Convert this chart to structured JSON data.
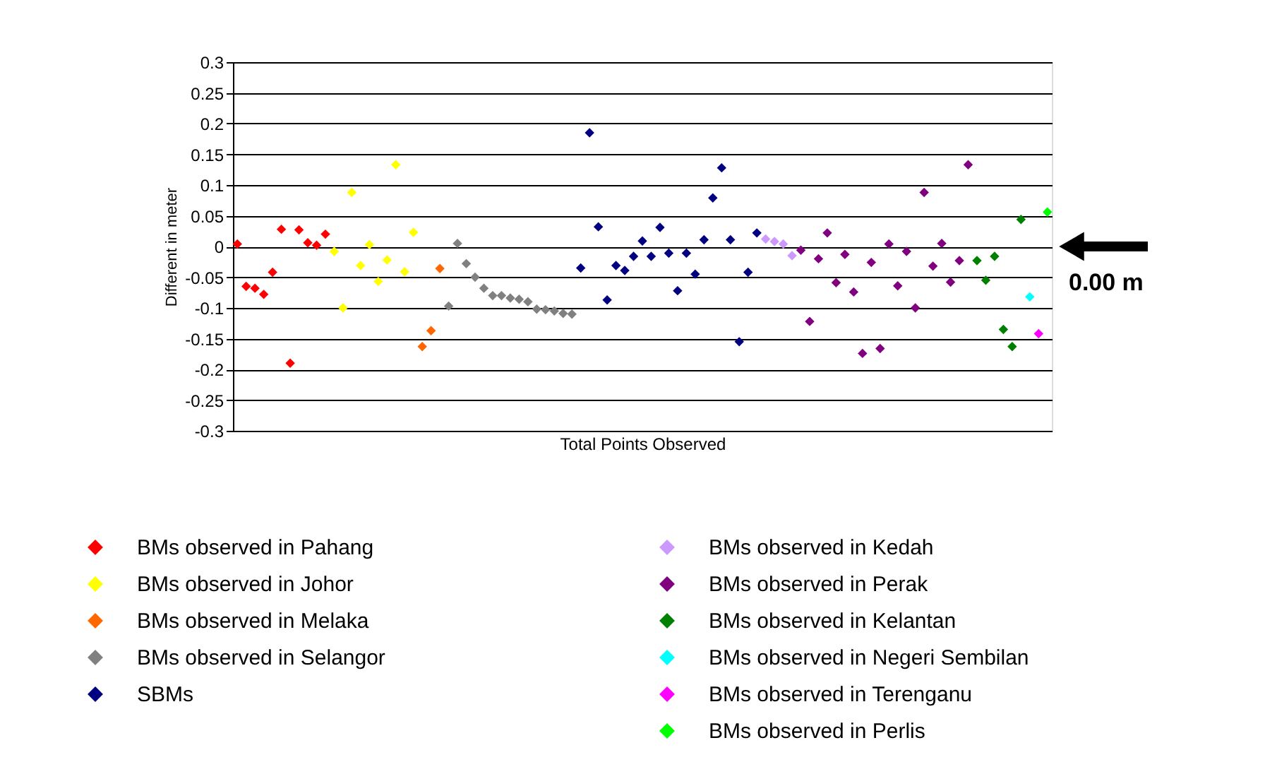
{
  "chart_data": {
    "type": "scatter",
    "xlabel": "Total Points Observed",
    "ylabel": "Different in meter",
    "categories": [
      null,
      null,
      null,
      null,
      null,
      null,
      null,
      null,
      null,
      null,
      null,
      null,
      null,
      null,
      null,
      null,
      null,
      null,
      null,
      null,
      null,
      null,
      null,
      null,
      null,
      null,
      null,
      null,
      null,
      null,
      null,
      null,
      null,
      null,
      null,
      null,
      null,
      null,
      null,
      null,
      null,
      null,
      null,
      null,
      null,
      null,
      null,
      null,
      null,
      null,
      null,
      null,
      null,
      null,
      null,
      null,
      null,
      null,
      null,
      null,
      null,
      null,
      null,
      null,
      null,
      null,
      null,
      null,
      null,
      null,
      null,
      null,
      null,
      null,
      null,
      null,
      null,
      null,
      null,
      null,
      null,
      null,
      null,
      null,
      null,
      null,
      null,
      null,
      null,
      null,
      null,
      null,
      null
    ],
    "series": [
      {
        "name": "BMs observed in Pahang",
        "color": "#ff0000",
        "values": [
          0.004,
          -0.065,
          -0.068,
          -0.078,
          -0.042,
          0.028,
          -0.19,
          0.027,
          0.006,
          0.002,
          0.02,
          null,
          null,
          null,
          null,
          null,
          null,
          null,
          null,
          null,
          null,
          null,
          null,
          null,
          null,
          null,
          null,
          null,
          null,
          null,
          null,
          null,
          null,
          null,
          null,
          null,
          null,
          null,
          null,
          null,
          null,
          null,
          null,
          null,
          null,
          null,
          null,
          null,
          null,
          null,
          null,
          null,
          null,
          null,
          null,
          null,
          null,
          null,
          null,
          null,
          null,
          null,
          null,
          null,
          null,
          null,
          null,
          null,
          null,
          null,
          null,
          null,
          null,
          null,
          null,
          null,
          null,
          null,
          null,
          null,
          null,
          null,
          null,
          null,
          null,
          null,
          null,
          null,
          null,
          null,
          null,
          null,
          null
        ]
      },
      {
        "name": "BMs observed in Johor",
        "color": "#ffff00",
        "values": [
          null,
          null,
          null,
          null,
          null,
          null,
          null,
          null,
          null,
          null,
          null,
          -0.008,
          -0.1,
          0.088,
          -0.031,
          0.003,
          -0.057,
          -0.022,
          0.133,
          -0.041,
          0.023,
          null,
          null,
          null,
          null,
          null,
          null,
          null,
          null,
          null,
          null,
          null,
          null,
          null,
          null,
          null,
          null,
          null,
          null,
          null,
          null,
          null,
          null,
          null,
          null,
          null,
          null,
          null,
          null,
          null,
          null,
          null,
          null,
          null,
          null,
          null,
          null,
          null,
          null,
          null,
          null,
          null,
          null,
          null,
          null,
          null,
          null,
          null,
          null,
          null,
          null,
          null,
          null,
          null,
          null,
          null,
          null,
          null,
          null,
          null,
          null,
          null,
          null,
          null,
          null,
          null,
          null,
          null,
          null,
          null,
          null,
          null,
          null
        ]
      },
      {
        "name": "BMs observed in Melaka",
        "color": "#ff6600",
        "values": [
          null,
          null,
          null,
          null,
          null,
          null,
          null,
          null,
          null,
          null,
          null,
          null,
          null,
          null,
          null,
          null,
          null,
          null,
          null,
          null,
          null,
          -0.163,
          -0.137,
          -0.036,
          null,
          null,
          null,
          null,
          null,
          null,
          null,
          null,
          null,
          null,
          null,
          null,
          null,
          null,
          null,
          null,
          null,
          null,
          null,
          null,
          null,
          null,
          null,
          null,
          null,
          null,
          null,
          null,
          null,
          null,
          null,
          null,
          null,
          null,
          null,
          null,
          null,
          null,
          null,
          null,
          null,
          null,
          null,
          null,
          null,
          null,
          null,
          null,
          null,
          null,
          null,
          null,
          null,
          null,
          null,
          null,
          null,
          null,
          null,
          null,
          null,
          null,
          null,
          null,
          null,
          null,
          null,
          null,
          null
        ]
      },
      {
        "name": "BMs observed in Selangor",
        "color": "#808080",
        "values": [
          null,
          null,
          null,
          null,
          null,
          null,
          null,
          null,
          null,
          null,
          null,
          null,
          null,
          null,
          null,
          null,
          null,
          null,
          null,
          null,
          null,
          null,
          null,
          null,
          -0.097,
          0.005,
          -0.028,
          -0.05,
          -0.068,
          -0.08,
          -0.08,
          -0.084,
          -0.086,
          -0.09,
          -0.102,
          -0.103,
          -0.105,
          -0.109,
          -0.11,
          null,
          null,
          null,
          null,
          null,
          null,
          null,
          null,
          null,
          null,
          null,
          null,
          null,
          null,
          null,
          null,
          null,
          null,
          null,
          null,
          null,
          null,
          null,
          null,
          null,
          null,
          null,
          null,
          null,
          null,
          null,
          null,
          null,
          null,
          null,
          null,
          null,
          null,
          null,
          null,
          null,
          null,
          null,
          null,
          null,
          null,
          null,
          null,
          null,
          null,
          null,
          null,
          null,
          null
        ]
      },
      {
        "name": "SBMs",
        "color": "#000080",
        "values": [
          null,
          null,
          null,
          null,
          null,
          null,
          null,
          null,
          null,
          null,
          null,
          null,
          null,
          null,
          null,
          null,
          null,
          null,
          null,
          null,
          null,
          null,
          null,
          null,
          null,
          null,
          null,
          null,
          null,
          null,
          null,
          null,
          null,
          null,
          null,
          null,
          null,
          null,
          null,
          -0.035,
          0.185,
          0.032,
          -0.087,
          -0.031,
          -0.039,
          -0.016,
          0.009,
          -0.016,
          0.031,
          -0.011,
          -0.072,
          -0.011,
          -0.045,
          0.011,
          0.079,
          0.128,
          0.011,
          -0.155,
          -0.042,
          0.022,
          null,
          null,
          null,
          null,
          null,
          null,
          null,
          null,
          null,
          null,
          null,
          null,
          null,
          null,
          null,
          null,
          null,
          null,
          null,
          null,
          null,
          null,
          null,
          null,
          null,
          null,
          null,
          null,
          null,
          null,
          null,
          null,
          null
        ]
      },
      {
        "name": "BMs observed in Kedah",
        "color": "#cc99ff",
        "values": [
          null,
          null,
          null,
          null,
          null,
          null,
          null,
          null,
          null,
          null,
          null,
          null,
          null,
          null,
          null,
          null,
          null,
          null,
          null,
          null,
          null,
          null,
          null,
          null,
          null,
          null,
          null,
          null,
          null,
          null,
          null,
          null,
          null,
          null,
          null,
          null,
          null,
          null,
          null,
          null,
          null,
          null,
          null,
          null,
          null,
          null,
          null,
          null,
          null,
          null,
          null,
          null,
          null,
          null,
          null,
          null,
          null,
          null,
          null,
          null,
          0.012,
          0.008,
          0.004,
          -0.015,
          null,
          null,
          null,
          null,
          null,
          null,
          null,
          null,
          null,
          null,
          null,
          null,
          null,
          null,
          null,
          null,
          null,
          null,
          null,
          null,
          null,
          null,
          null,
          null,
          null,
          null,
          null,
          null,
          null
        ]
      },
      {
        "name": "BMs observed in Perak",
        "color": "#800080",
        "values": [
          null,
          null,
          null,
          null,
          null,
          null,
          null,
          null,
          null,
          null,
          null,
          null,
          null,
          null,
          null,
          null,
          null,
          null,
          null,
          null,
          null,
          null,
          null,
          null,
          null,
          null,
          null,
          null,
          null,
          null,
          null,
          null,
          null,
          null,
          null,
          null,
          null,
          null,
          null,
          null,
          null,
          null,
          null,
          null,
          null,
          null,
          null,
          null,
          null,
          null,
          null,
          null,
          null,
          null,
          null,
          null,
          null,
          null,
          null,
          null,
          null,
          null,
          null,
          null,
          -0.006,
          -0.122,
          -0.02,
          0.022,
          -0.059,
          -0.013,
          -0.074,
          -0.174,
          -0.026,
          -0.166,
          0.004,
          -0.064,
          -0.008,
          -0.1,
          0.088,
          -0.032,
          0.005,
          -0.058,
          -0.023,
          0.133,
          null,
          null,
          null,
          null,
          null,
          null,
          null,
          null,
          null
        ]
      },
      {
        "name": "BMs observed in Kelantan",
        "color": "#008000",
        "values": [
          null,
          null,
          null,
          null,
          null,
          null,
          null,
          null,
          null,
          null,
          null,
          null,
          null,
          null,
          null,
          null,
          null,
          null,
          null,
          null,
          null,
          null,
          null,
          null,
          null,
          null,
          null,
          null,
          null,
          null,
          null,
          null,
          null,
          null,
          null,
          null,
          null,
          null,
          null,
          null,
          null,
          null,
          null,
          null,
          null,
          null,
          null,
          null,
          null,
          null,
          null,
          null,
          null,
          null,
          null,
          null,
          null,
          null,
          null,
          null,
          null,
          null,
          null,
          null,
          null,
          null,
          null,
          null,
          null,
          null,
          null,
          null,
          null,
          null,
          null,
          null,
          null,
          null,
          null,
          null,
          null,
          null,
          null,
          null,
          -0.023,
          -0.055,
          -0.016,
          -0.135,
          -0.163,
          0.044,
          null,
          null,
          null
        ]
      },
      {
        "name": "BMs observed in Negeri Sembilan",
        "color": "#00ffff",
        "values": [
          null,
          null,
          null,
          null,
          null,
          null,
          null,
          null,
          null,
          null,
          null,
          null,
          null,
          null,
          null,
          null,
          null,
          null,
          null,
          null,
          null,
          null,
          null,
          null,
          null,
          null,
          null,
          null,
          null,
          null,
          null,
          null,
          null,
          null,
          null,
          null,
          null,
          null,
          null,
          null,
          null,
          null,
          null,
          null,
          null,
          null,
          null,
          null,
          null,
          null,
          null,
          null,
          null,
          null,
          null,
          null,
          null,
          null,
          null,
          null,
          null,
          null,
          null,
          null,
          null,
          null,
          null,
          null,
          null,
          null,
          null,
          null,
          null,
          null,
          null,
          null,
          null,
          null,
          null,
          null,
          null,
          null,
          null,
          null,
          null,
          null,
          null,
          null,
          null,
          null,
          -0.082,
          null,
          null
        ]
      },
      {
        "name": "BMs observed in Terenganu",
        "color": "#ff00ff",
        "values": [
          null,
          null,
          null,
          null,
          null,
          null,
          null,
          null,
          null,
          null,
          null,
          null,
          null,
          null,
          null,
          null,
          null,
          null,
          null,
          null,
          null,
          null,
          null,
          null,
          null,
          null,
          null,
          null,
          null,
          null,
          null,
          null,
          null,
          null,
          null,
          null,
          null,
          null,
          null,
          null,
          null,
          null,
          null,
          null,
          null,
          null,
          null,
          null,
          null,
          null,
          null,
          null,
          null,
          null,
          null,
          null,
          null,
          null,
          null,
          null,
          null,
          null,
          null,
          null,
          null,
          null,
          null,
          null,
          null,
          null,
          null,
          null,
          null,
          null,
          null,
          null,
          null,
          null,
          null,
          null,
          null,
          null,
          null,
          null,
          null,
          null,
          null,
          null,
          null,
          null,
          null,
          -0.142,
          null
        ]
      },
      {
        "name": "BMs observed in Perlis",
        "color": "#00ff00",
        "values": [
          null,
          null,
          null,
          null,
          null,
          null,
          null,
          null,
          null,
          null,
          null,
          null,
          null,
          null,
          null,
          null,
          null,
          null,
          null,
          null,
          null,
          null,
          null,
          null,
          null,
          null,
          null,
          null,
          null,
          null,
          null,
          null,
          null,
          null,
          null,
          null,
          null,
          null,
          null,
          null,
          null,
          null,
          null,
          null,
          null,
          null,
          null,
          null,
          null,
          null,
          null,
          null,
          null,
          null,
          null,
          null,
          null,
          null,
          null,
          null,
          null,
          null,
          null,
          null,
          null,
          null,
          null,
          null,
          null,
          null,
          null,
          null,
          null,
          null,
          null,
          null,
          null,
          null,
          null,
          null,
          null,
          null,
          null,
          null,
          null,
          null,
          null,
          null,
          null,
          null,
          null,
          null,
          0.056
        ]
      }
    ],
    "ylim": [
      -0.3,
      0.3
    ],
    "yticks": [
      -0.3,
      -0.25,
      -0.2,
      -0.15,
      -0.1,
      -0.05,
      0,
      0.05,
      0.1,
      0.15,
      0.2,
      0.25,
      0.3
    ],
    "grid": "y",
    "legend": "bottom",
    "marker": "diamond",
    "tick_labels": "y",
    "annotations": [
      "0.00 m"
    ]
  }
}
